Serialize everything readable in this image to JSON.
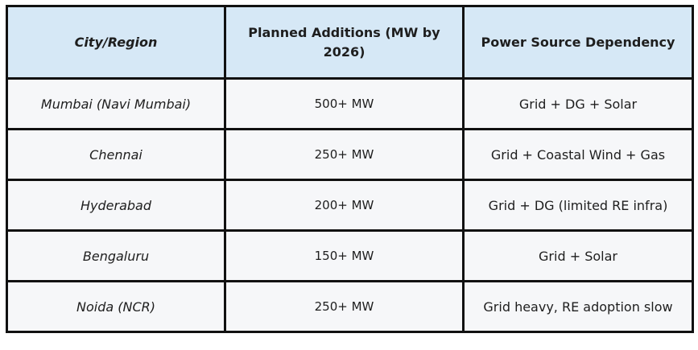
{
  "table": {
    "headers": {
      "city": "City/Region",
      "additions": "Planned Additions (MW by 2026)",
      "power": "Power Source Dependency"
    },
    "rows": [
      {
        "city": "Mumbai (Navi Mumbai)",
        "additions": "500+ MW",
        "power": "Grid + DG + Solar"
      },
      {
        "city": "Chennai",
        "additions": "250+ MW",
        "power": "Grid + Coastal Wind + Gas"
      },
      {
        "city": "Hyderabad",
        "additions": "200+ MW",
        "power": "Grid + DG (limited RE infra)"
      },
      {
        "city": "Bengaluru",
        "additions": "150+ MW",
        "power": "Grid + Solar"
      },
      {
        "city": "Noida (NCR)",
        "additions": "250+ MW",
        "power": "Grid heavy, RE adoption slow"
      }
    ]
  }
}
